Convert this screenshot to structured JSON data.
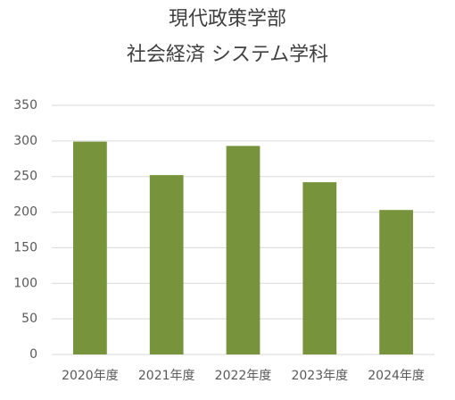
{
  "chart_data": {
    "type": "bar",
    "title": [
      "現代政策学部",
      "社会経済 システム学科"
    ],
    "categories": [
      "2020年度",
      "2021年度",
      "2022年度",
      "2023年度",
      "2024年度"
    ],
    "values": [
      299,
      252,
      293,
      242,
      203
    ],
    "color": "#77933c",
    "ylim": [
      0,
      350
    ],
    "yticks": [
      0,
      50,
      100,
      150,
      200,
      250,
      300,
      350
    ],
    "grid": true
  }
}
